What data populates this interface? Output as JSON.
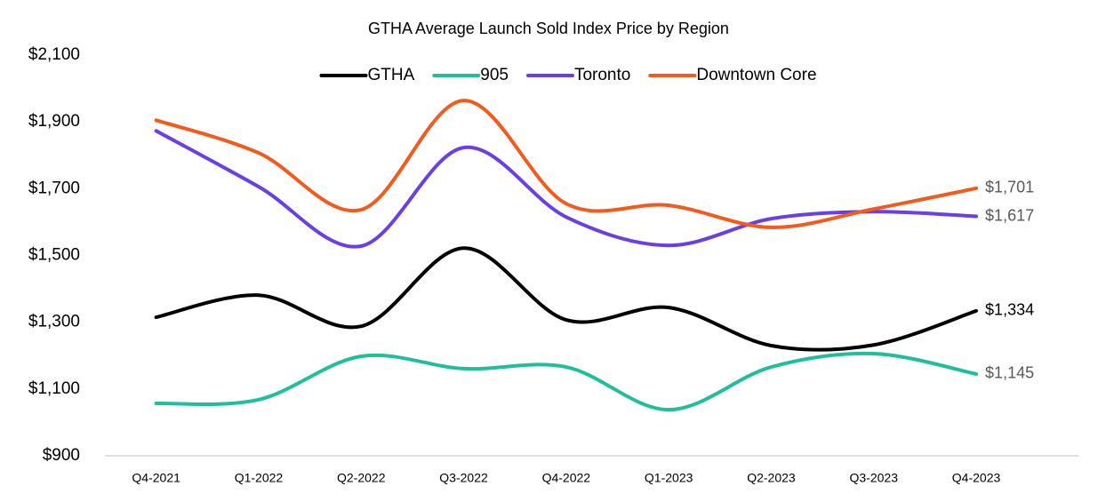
{
  "chart_data": {
    "type": "line",
    "title": "GTHA Average Launch Sold Index Price by Region",
    "categories": [
      "Q4-2021",
      "Q1-2022",
      "Q2-2022",
      "Q3-2022",
      "Q4-2022",
      "Q1-2023",
      "Q2-2023",
      "Q3-2023",
      "Q4-2023"
    ],
    "series": [
      {
        "name": "GTHA",
        "color": "#000000",
        "values": [
          1315,
          1381,
          1288,
          1522,
          1307,
          1344,
          1230,
          1232,
          1334
        ],
        "value_labels": [
          null,
          null,
          null,
          null,
          null,
          null,
          null,
          null,
          "$1,334"
        ]
      },
      {
        "name": "905",
        "color": "#1fbf9c",
        "values": [
          1057,
          1068,
          1198,
          1161,
          1166,
          1038,
          1166,
          1206,
          1145
        ],
        "value_labels": [
          null,
          null,
          null,
          null,
          null,
          null,
          null,
          null,
          "$1,145"
        ]
      },
      {
        "name": "Toronto",
        "color": "#6b3ee6",
        "values": [
          1873,
          1706,
          1528,
          1823,
          1615,
          1530,
          1610,
          1631,
          1617
        ],
        "value_labels": [
          null,
          null,
          null,
          null,
          null,
          null,
          null,
          null,
          "$1,617"
        ]
      },
      {
        "name": "Downtown Core",
        "color": "#f45a1c",
        "values": [
          1905,
          1807,
          1637,
          1964,
          1655,
          1650,
          1584,
          1639,
          1701
        ],
        "value_labels": [
          null,
          null,
          null,
          null,
          null,
          null,
          null,
          null,
          "$1,701"
        ]
      }
    ],
    "ylim": [
      900,
      2100
    ],
    "yticks": [
      {
        "value": 900,
        "label": "$900"
      },
      {
        "value": 1100,
        "label": "$1,100"
      },
      {
        "value": 1300,
        "label": "$1,300"
      },
      {
        "value": 1500,
        "label": "$1,500"
      },
      {
        "value": 1700,
        "label": "$1,700"
      },
      {
        "value": 1900,
        "label": "$1,900"
      },
      {
        "value": 2100,
        "label": "$2,100"
      }
    ],
    "grid": false,
    "legend": "top"
  }
}
